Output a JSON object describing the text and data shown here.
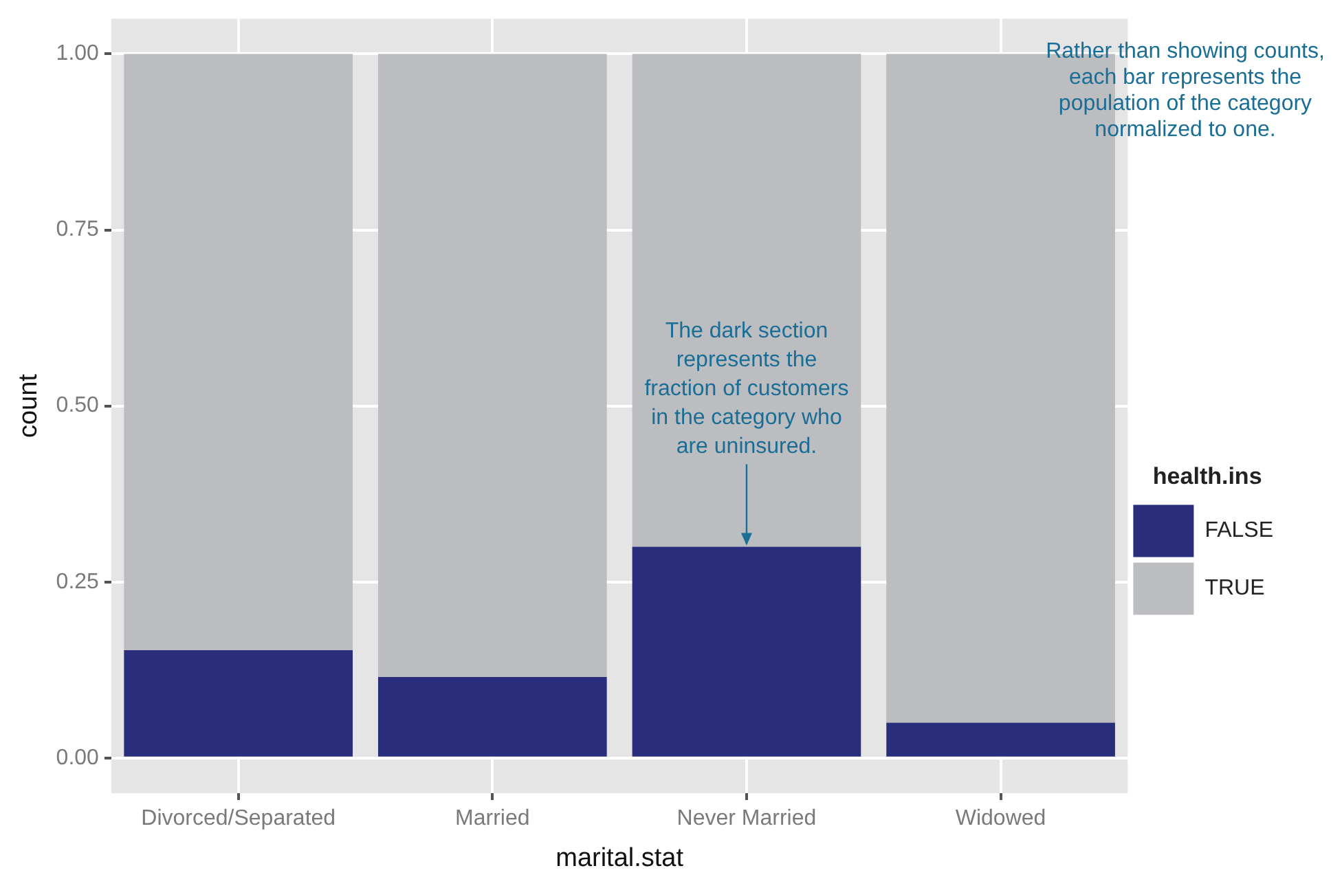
{
  "chart_data": {
    "type": "bar",
    "stacked": true,
    "xlabel": "marital.stat",
    "ylabel": "count",
    "legend_title": "health.ins",
    "legend": "right",
    "categories": [
      "Divorced/Separated",
      "Married",
      "Never Married",
      "Widowed"
    ],
    "series": [
      {
        "name": "FALSE",
        "color": "#2a2d7c",
        "values": [
          0.153,
          0.115,
          0.3,
          0.05
        ]
      },
      {
        "name": "TRUE",
        "color": "#bcbdc0",
        "values": [
          0.847,
          0.885,
          0.7,
          0.95
        ]
      }
    ],
    "ylim": [
      -0.05,
      1.05
    ],
    "yticks": [
      {
        "value": 0,
        "label": "0.00"
      },
      {
        "value": 0.25,
        "label": "0.25"
      },
      {
        "value": 0.5,
        "label": "0.50"
      },
      {
        "value": 0.75,
        "label": "0.75"
      },
      {
        "value": 1,
        "label": "1.00"
      }
    ],
    "grid": true,
    "annotations": [
      {
        "text": "The dark section represents the fraction of customers in the category who are uninsured.",
        "x": "Never Married",
        "y": 0.3
      },
      "Rather than showing counts, each bar represents the population of the category normalized to one."
    ]
  }
}
